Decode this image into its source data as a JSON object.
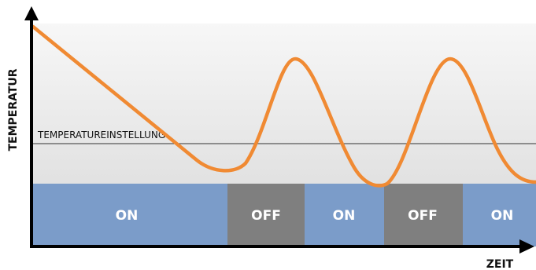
{
  "axes": {
    "y_label": "TEMPERATUR",
    "x_label": "ZEIT"
  },
  "setpoint_label": "TEMPERATUREINSTELLUNG",
  "segments": [
    {
      "label": "ON",
      "state": "on"
    },
    {
      "label": "OFF",
      "state": "off"
    },
    {
      "label": "ON",
      "state": "on"
    },
    {
      "label": "OFF",
      "state": "off"
    },
    {
      "label": "ON",
      "state": "on"
    }
  ],
  "colors": {
    "on": "#7b9cc9",
    "off": "#7f7f7f",
    "curve": "#f08a33",
    "axis": "#000000",
    "setpoint_line": "#333333",
    "background_top": "#f7f7f7",
    "background_bottom": "#d9d9d9"
  }
}
